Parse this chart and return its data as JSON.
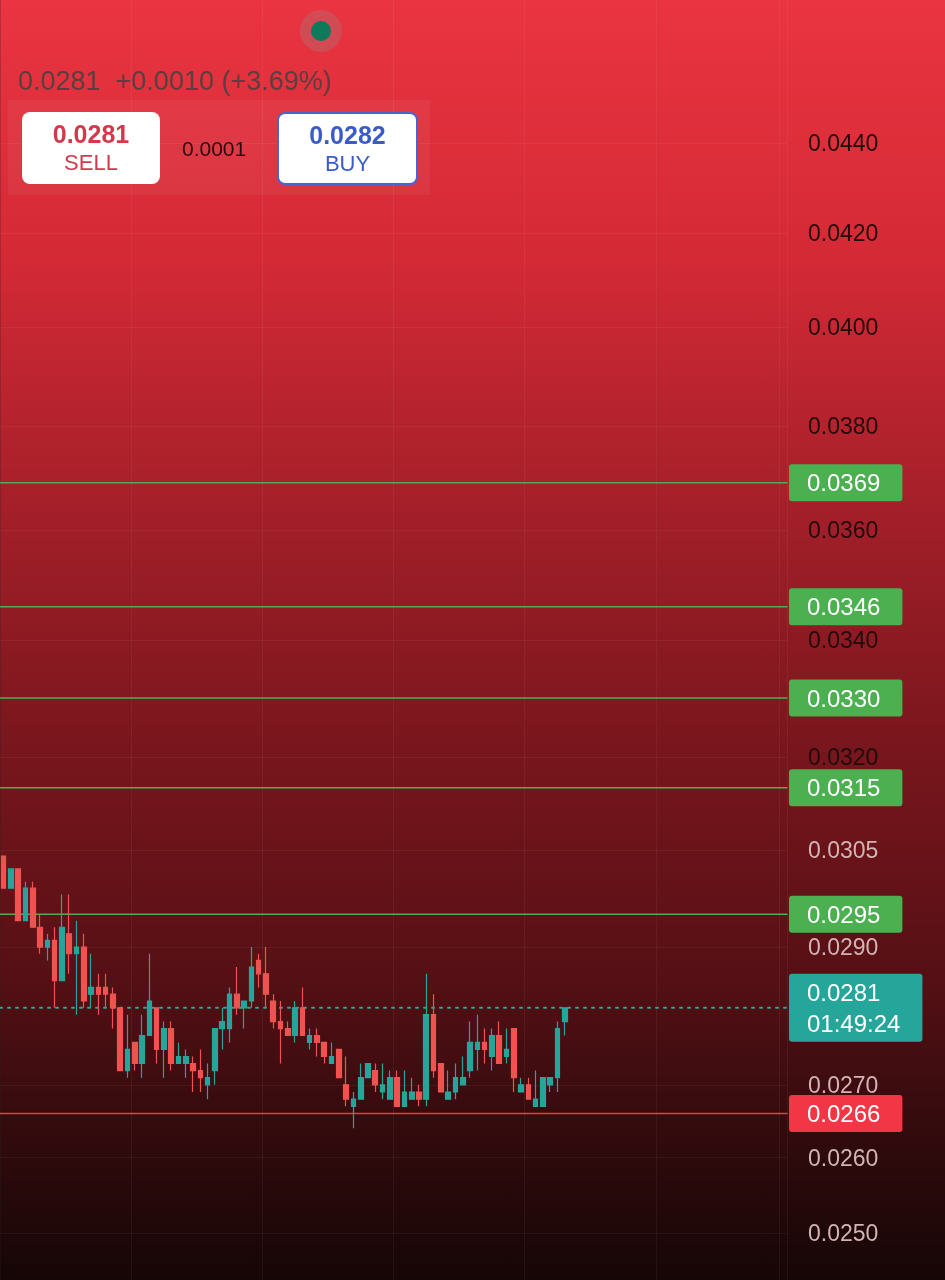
{
  "chart_data": {
    "type": "candlestick",
    "log": true,
    "grid": true,
    "tick_labels": "y",
    "ylim": [
      0.0244,
      0.0474
    ],
    "yticks": [
      {
        "value": 0.025,
        "label": "0.0250"
      },
      {
        "value": 0.026,
        "label": "0.0260"
      },
      {
        "value": 0.027,
        "label": "0.0270"
      },
      {
        "value": 0.029,
        "label": "0.0290"
      },
      0.0305,
      {
        "value": 0.032,
        "label": "0.0320"
      },
      {
        "value": 0.034,
        "label": "0.0340"
      },
      {
        "value": 0.036,
        "label": "0.0360"
      },
      {
        "value": 0.038,
        "label": "0.0380"
      },
      {
        "value": 0.04,
        "label": "0.0400"
      },
      {
        "value": 0.042,
        "label": "0.0420"
      },
      {
        "value": 0.044,
        "label": "0.0440"
      }
    ],
    "categories": [
      null,
      null,
      null,
      null,
      null,
      null,
      null,
      null,
      null,
      null,
      null,
      null,
      null,
      null,
      null,
      null,
      null,
      null,
      null,
      null,
      null,
      null,
      null,
      null,
      null,
      null,
      null,
      null,
      null,
      null,
      null,
      null,
      null,
      null,
      null,
      null,
      null,
      null,
      null,
      null,
      null,
      null,
      null,
      null,
      null,
      null,
      null,
      null,
      null,
      null,
      null,
      null,
      null,
      null,
      null,
      null,
      null,
      null,
      null,
      null,
      null,
      null,
      null,
      null,
      null,
      null,
      null,
      null,
      null,
      null,
      null,
      null,
      null,
      null,
      null,
      null,
      null,
      null,
      null,
      null,
      null,
      null,
      null,
      null,
      null,
      null,
      null,
      null,
      null,
      null,
      null,
      null,
      null,
      null,
      null,
      null,
      null,
      null,
      null,
      null,
      null,
      null,
      null,
      null,
      null,
      null,
      null,
      null
    ],
    "ohlc": [
      [
        0.0304,
        0.0304,
        0.0299,
        0.0299
      ],
      [
        0.0299,
        0.0302,
        0.0299,
        0.0302
      ],
      [
        0.0302,
        0.0302,
        0.0294,
        0.0294
      ],
      [
        0.0294,
        0.03,
        0.0294,
        0.0299
      ],
      [
        0.0299,
        0.03,
        0.0293,
        0.0293
      ],
      [
        0.0293,
        0.0295,
        0.0289,
        0.029
      ],
      [
        0.029,
        0.0292,
        0.0288,
        0.0291
      ],
      [
        0.0291,
        0.0293,
        0.0281,
        0.0285
      ],
      [
        0.0285,
        0.0298,
        0.0285,
        0.0293
      ],
      [
        0.0292,
        0.0298,
        0.0286,
        0.0289
      ],
      [
        0.0289,
        0.0294,
        0.028,
        0.029
      ],
      [
        0.029,
        0.0292,
        0.0281,
        0.0282
      ],
      [
        0.0283,
        0.0289,
        0.0281,
        0.0284
      ],
      [
        0.0284,
        0.0286,
        0.028,
        0.0283
      ],
      [
        0.0284,
        0.0286,
        0.0281,
        0.0283
      ],
      [
        0.0283,
        0.0284,
        0.0278,
        0.0281
      ],
      [
        0.0281,
        0.0281,
        0.0272,
        0.0272
      ],
      [
        0.0272,
        0.028,
        0.0271,
        0.0275
      ],
      [
        0.0276,
        0.0276,
        0.0272,
        0.0273
      ],
      [
        0.0273,
        0.028,
        0.0271,
        0.0277
      ],
      [
        0.0277,
        0.0289,
        0.0277,
        0.0282
      ],
      [
        0.0281,
        0.0281,
        0.0273,
        0.0275
      ],
      [
        0.0275,
        0.0279,
        0.0271,
        0.0278
      ],
      [
        0.0278,
        0.0279,
        0.0272,
        0.0273
      ],
      [
        0.0273,
        0.0276,
        0.0273,
        0.0274
      ],
      [
        0.0273,
        0.0275,
        0.0271,
        0.0274
      ],
      [
        0.0273,
        0.0274,
        0.0269,
        0.0272
      ],
      [
        0.0272,
        0.0275,
        0.0269,
        0.0271
      ],
      [
        0.027,
        0.0273,
        0.0268,
        0.0271
      ],
      [
        0.0272,
        0.0278,
        0.027,
        0.0278
      ],
      [
        0.0278,
        0.0281,
        0.0275,
        0.0279
      ],
      [
        0.0278,
        0.0284,
        0.0276,
        0.0283
      ],
      [
        0.0283,
        0.0287,
        0.028,
        0.0281
      ],
      [
        0.0281,
        0.0282,
        0.0278,
        0.0282
      ],
      [
        0.0282,
        0.029,
        0.0281,
        0.0287
      ],
      [
        0.0288,
        0.0289,
        0.0284,
        0.0286
      ],
      [
        0.0286,
        0.029,
        0.0281,
        0.0283
      ],
      [
        0.0282,
        0.0283,
        0.0278,
        0.0279
      ],
      [
        0.0279,
        0.0282,
        0.0273,
        0.0278
      ],
      [
        0.0278,
        0.0279,
        0.0277,
        0.0277
      ],
      [
        0.0277,
        0.0282,
        0.0276,
        0.0281
      ],
      [
        0.0281,
        0.0284,
        0.0277,
        0.0277
      ],
      [
        0.0276,
        0.0278,
        0.0275,
        0.0277
      ],
      [
        0.0277,
        0.0278,
        0.0274,
        0.0276
      ],
      [
        0.0276,
        0.0276,
        0.0273,
        0.0274
      ],
      [
        0.0273,
        0.0276,
        0.0273,
        0.0274
      ],
      [
        0.0275,
        0.0275,
        0.0271,
        0.0271
      ],
      [
        0.027,
        0.0274,
        0.0267,
        0.0268
      ],
      [
        0.0267,
        0.0269,
        0.0264,
        0.0268
      ],
      [
        0.0268,
        0.0273,
        0.0268,
        0.0271
      ],
      [
        0.0271,
        0.0273,
        0.0271,
        0.0273
      ],
      [
        0.0272,
        0.0273,
        0.0269,
        0.027
      ],
      [
        0.0269,
        0.0273,
        0.0268,
        0.027
      ],
      [
        0.0268,
        0.0272,
        0.0268,
        0.0271
      ],
      [
        0.0271,
        0.0272,
        0.0267,
        0.0267
      ],
      [
        0.0267,
        0.0272,
        0.0267,
        0.0269
      ],
      [
        0.0268,
        0.0271,
        0.0268,
        0.0269
      ],
      [
        0.0269,
        0.027,
        0.0267,
        0.0268
      ],
      [
        0.0268,
        0.0286,
        0.0267,
        0.028
      ],
      [
        0.028,
        0.0283,
        0.0271,
        0.0272
      ],
      [
        0.0273,
        0.0273,
        0.0269,
        0.0269
      ],
      [
        0.0268,
        0.0272,
        0.0268,
        0.0269
      ],
      [
        0.0269,
        0.0273,
        0.0268,
        0.0271
      ],
      [
        0.027,
        0.0274,
        0.027,
        0.0271
      ],
      [
        0.0272,
        0.0279,
        0.0271,
        0.0276
      ],
      [
        0.0275,
        0.028,
        0.0272,
        0.0276
      ],
      [
        0.0276,
        0.0278,
        0.0273,
        0.0275
      ],
      [
        0.0274,
        0.0278,
        0.0272,
        0.0277
      ],
      [
        0.0277,
        0.0279,
        0.0273,
        0.0273
      ],
      [
        0.0274,
        0.0278,
        0.0273,
        0.0275
      ],
      [
        0.0278,
        0.0278,
        0.0269,
        0.0271
      ],
      [
        0.0269,
        0.0271,
        0.0269,
        0.027
      ],
      [
        0.027,
        0.0271,
        0.0268,
        0.0268
      ],
      [
        0.0267,
        0.0272,
        0.0267,
        0.0268
      ],
      [
        0.0267,
        0.0271,
        0.0267,
        0.0271
      ],
      [
        0.027,
        0.0271,
        0.0269,
        0.0271
      ],
      [
        0.0271,
        0.0279,
        0.0269,
        0.0278
      ],
      [
        0.0279,
        0.0281,
        0.0277,
        0.0281
      ],
      null,
      null,
      null,
      null,
      null,
      null,
      null,
      null,
      null,
      null,
      null,
      null,
      null,
      null,
      null,
      null,
      null,
      null,
      null,
      null,
      null,
      null,
      null,
      null,
      null,
      null,
      null,
      null,
      null,
      null
    ],
    "colors": [
      "#ef5350",
      "#26a69a",
      "#ef5350",
      "#26a69a",
      "#ef5350",
      "#ef5350",
      "#26a69a",
      "#ef5350",
      "#26a69a",
      "#ef5350",
      "#26a69a",
      "#ef5350",
      "#26a69a",
      "#ef5350",
      "#ef5350",
      "#ef5350",
      "#ef5350",
      "#26a69a",
      "#ef5350",
      "#26a69a",
      "#26a69a",
      "#ef5350",
      "#26a69a",
      "#ef5350",
      "#26a69a",
      "#26a69a",
      "#ef5350",
      "#ef5350",
      "#26a69a",
      "#26a69a",
      "#26a69a",
      "#26a69a",
      "#ef5350",
      "#26a69a",
      "#26a69a",
      "#ef5350",
      "#ef5350",
      "#ef5350",
      "#ef5350",
      "#ef5350",
      "#26a69a",
      "#ef5350",
      "#26a69a",
      "#ef5350",
      "#ef5350",
      "#26a69a",
      "#ef5350",
      "#ef5350",
      "#26a69a",
      "#26a69a",
      "#26a69a",
      "#ef5350",
      "#26a69a",
      "#26a69a",
      "#ef5350",
      "#26a69a",
      "#26a69a",
      "#ef5350",
      "#26a69a",
      "#ef5350",
      "#ef5350",
      "#26a69a",
      "#26a69a",
      "#26a69a",
      "#26a69a",
      "#26a69a",
      "#ef5350",
      "#26a69a",
      "#ef5350",
      "#26a69a",
      "#ef5350",
      "#26a69a",
      "#ef5350",
      "#26a69a",
      "#26a69a",
      "#26a69a",
      "#26a69a",
      "#26a69a",
      null,
      null,
      null,
      null,
      null,
      null,
      null,
      null,
      null,
      null,
      null,
      null,
      null,
      null,
      null,
      null,
      null,
      null,
      null,
      null,
      null,
      null,
      null,
      null,
      null,
      null,
      null,
      null,
      null,
      null
    ],
    "ref_lines": [
      {
        "axis": "y",
        "value": 0.0369,
        "label": "0.0369",
        "color": "#4caf50"
      },
      {
        "axis": "y",
        "value": 0.0346,
        "label": "0.0346",
        "color": "#4caf50"
      },
      {
        "axis": "y",
        "value": 0.033,
        "label": "0.0330",
        "color": "#4caf50"
      },
      {
        "axis": "y",
        "value": 0.0315,
        "label": "0.0315",
        "color": "#4caf50"
      },
      {
        "axis": "y",
        "value": 0.0295,
        "label": "0.0295",
        "color": "#4caf50"
      },
      {
        "axis": "y",
        "value": 0.0281,
        "label": "0.0281\n01:49:24",
        "color": "#26a69a",
        "line_style": "dotted"
      },
      {
        "axis": "y",
        "value": 0.0266,
        "label": "0.0266",
        "color": "#f23645"
      }
    ],
    "annotations": [
      "0.0281  +0.0010 (+3.69%)",
      "0.0281",
      "SELL",
      "0.0001",
      "0.0282",
      "BUY"
    ]
  }
}
